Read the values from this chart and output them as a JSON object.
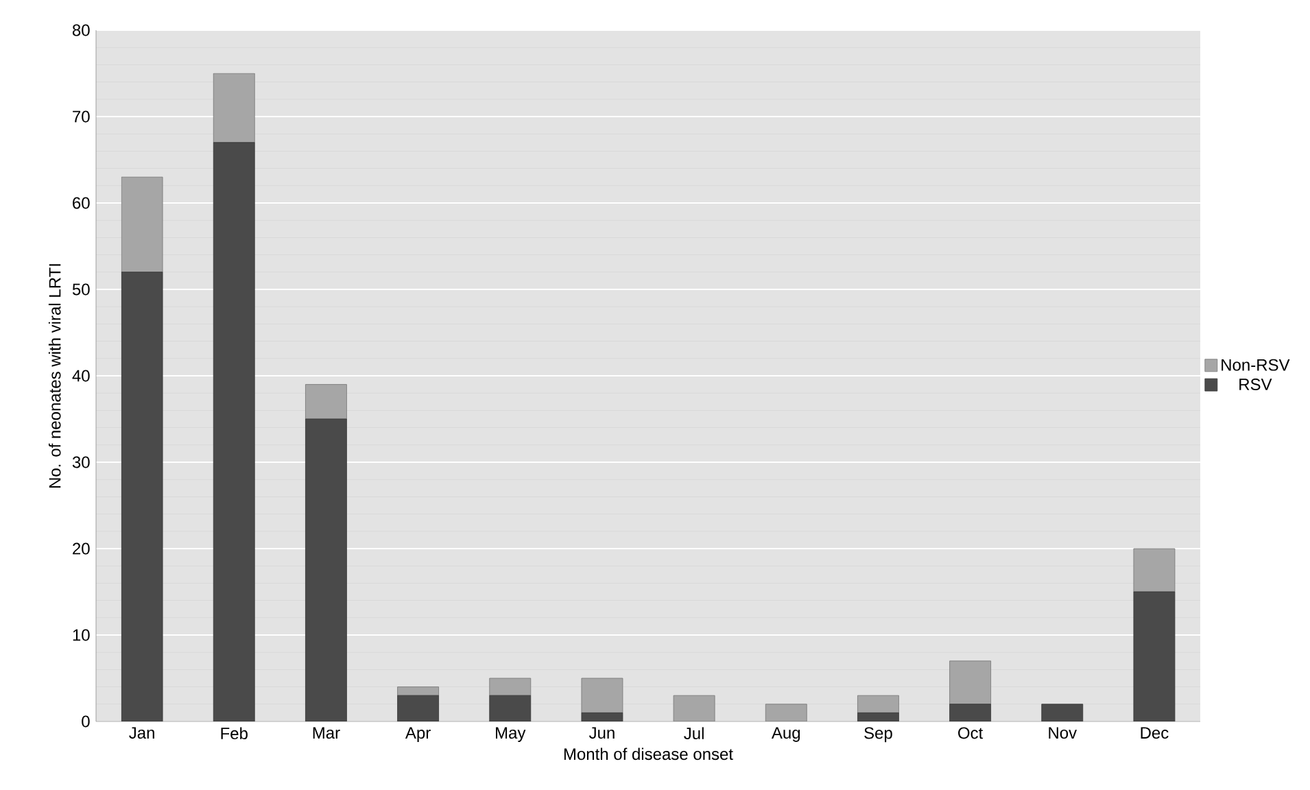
{
  "chart_data": {
    "type": "bar",
    "stacked": true,
    "xlabel": "Month of disease onset",
    "ylabel": "No. of neonates with viral LRTI",
    "categories": [
      "Jan",
      "Feb",
      "Mar",
      "Apr",
      "May",
      "Jun",
      "Jul",
      "Aug",
      "Sep",
      "Oct",
      "Nov",
      "Dec"
    ],
    "series": [
      {
        "name": "RSV",
        "color": "#4a4a4a",
        "values": [
          52,
          67,
          35,
          3,
          3,
          1,
          0,
          0,
          1,
          2,
          2,
          15
        ]
      },
      {
        "name": "Non-RSV",
        "color": "#a6a6a6",
        "values": [
          11,
          8,
          4,
          1,
          2,
          4,
          3,
          2,
          2,
          5,
          0,
          5
        ]
      }
    ],
    "ylim": [
      0,
      80
    ],
    "yticks": [
      0,
      10,
      20,
      30,
      40,
      50,
      60,
      70,
      80
    ],
    "grid": "y",
    "legend": "right"
  }
}
